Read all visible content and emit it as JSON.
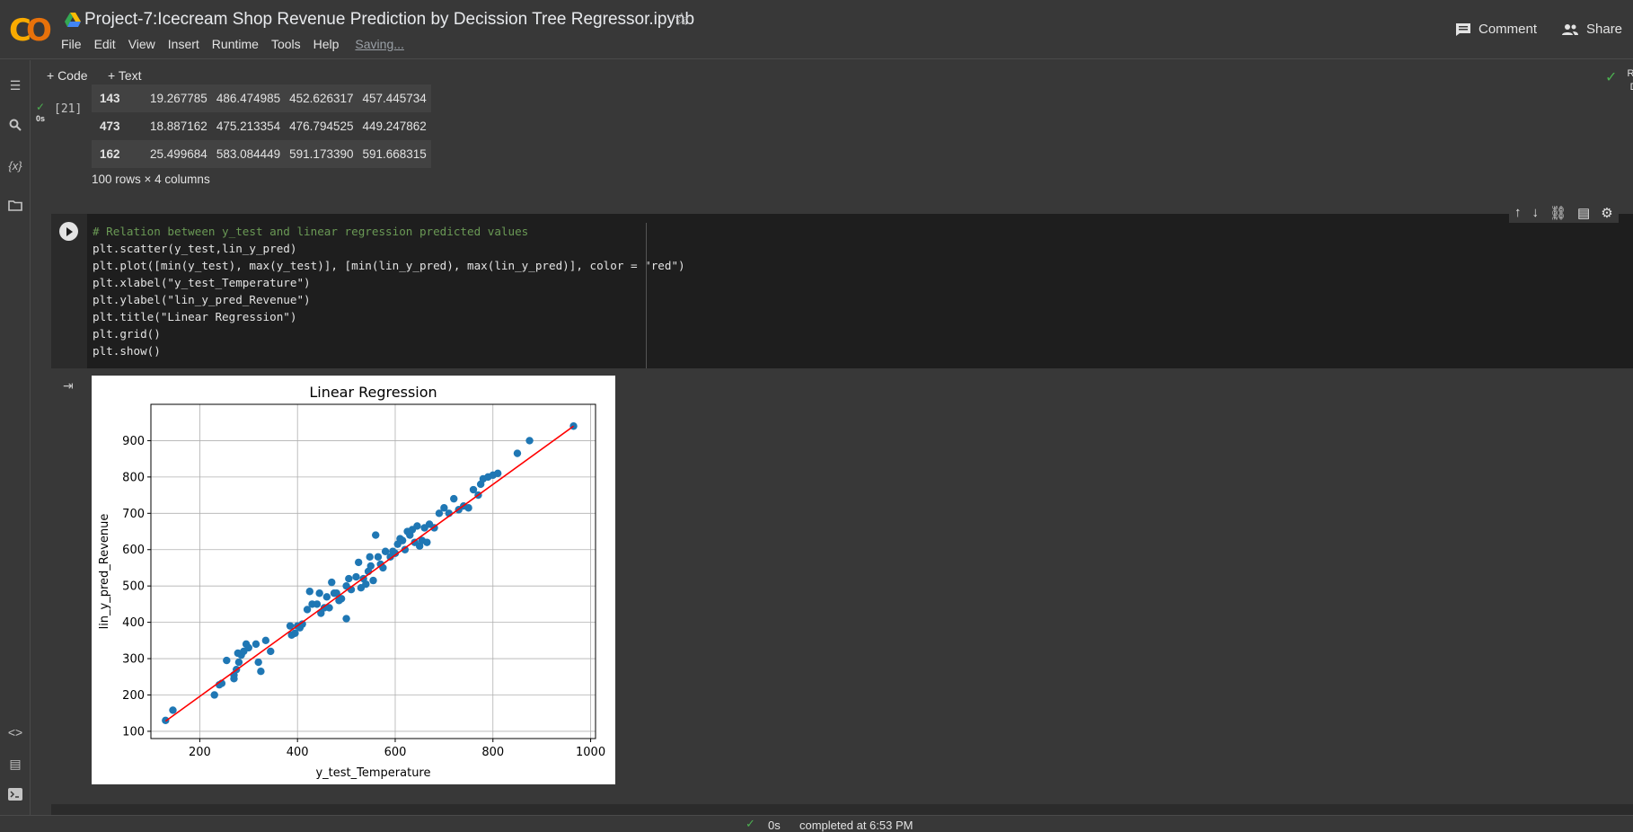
{
  "header": {
    "title": "Project-7:Icecream Shop Revenue Prediction by Decission Tree Regressor.ipynb",
    "menu": [
      "File",
      "Edit",
      "View",
      "Insert",
      "Runtime",
      "Tools",
      "Help"
    ],
    "saving": "Saving...",
    "comment_label": "Comment",
    "share_label": "Share"
  },
  "toolbar": {
    "code_label": "+ Code",
    "text_label": "+ Text",
    "ram_label": "RAM",
    "disk_label": "Disk"
  },
  "prev_cell": {
    "exec_count": "[21]",
    "exec_time": "0s",
    "rows": [
      {
        "idx": "143",
        "c1": "19.267785",
        "c2": "486.474985",
        "c3": "452.626317",
        "c4": "457.445734"
      },
      {
        "idx": "473",
        "c1": "18.887162",
        "c2": "475.213354",
        "c3": "476.794525",
        "c4": "449.247862"
      },
      {
        "idx": "162",
        "c1": "25.499684",
        "c2": "583.084449",
        "c3": "591.173390",
        "c4": "591.668315"
      }
    ],
    "shape_text": "100 rows × 4 columns"
  },
  "code_lines": [
    "# Relation between y_test and linear regression predicted values",
    "plt.scatter(y_test,lin_y_pred)",
    "plt.plot([min(y_test), max(y_test)], [min(lin_y_pred), max(lin_y_pred)], color = \"red\")",
    "plt.xlabel(\"y_test_Temperature\")",
    "plt.ylabel(\"lin_y_pred_Revenue\")",
    "plt.title(\"Linear Regression\")",
    "plt.grid()",
    "plt.show()"
  ],
  "chart_data": {
    "type": "scatter",
    "title": "Linear Regression",
    "xlabel": "y_test_Temperature",
    "ylabel": "lin_y_pred_Revenue",
    "xlim": [
      100,
      1010
    ],
    "ylim": [
      80,
      1000
    ],
    "xticks": [
      200,
      400,
      600,
      800,
      1000
    ],
    "yticks": [
      100,
      200,
      300,
      400,
      500,
      600,
      700,
      800,
      900
    ],
    "grid": true,
    "series": [
      {
        "points": [
          [
            130,
            130
          ],
          [
            145,
            158
          ],
          [
            230,
            200
          ],
          [
            240,
            228
          ],
          [
            245,
            232
          ],
          [
            255,
            295
          ],
          [
            270,
            255
          ],
          [
            270,
            245
          ],
          [
            275,
            270
          ],
          [
            278,
            315
          ],
          [
            280,
            290
          ],
          [
            285,
            310
          ],
          [
            290,
            320
          ],
          [
            295,
            340
          ],
          [
            300,
            330
          ],
          [
            315,
            340
          ],
          [
            320,
            290
          ],
          [
            325,
            265
          ],
          [
            335,
            350
          ],
          [
            345,
            320
          ],
          [
            385,
            390
          ],
          [
            388,
            365
          ],
          [
            395,
            370
          ],
          [
            400,
            390
          ],
          [
            405,
            385
          ],
          [
            410,
            395
          ],
          [
            420,
            435
          ],
          [
            425,
            485
          ],
          [
            430,
            450
          ],
          [
            440,
            450
          ],
          [
            445,
            480
          ],
          [
            448,
            425
          ],
          [
            455,
            440
          ],
          [
            460,
            470
          ],
          [
            465,
            440
          ],
          [
            470,
            510
          ],
          [
            475,
            480
          ],
          [
            480,
            480
          ],
          [
            485,
            460
          ],
          [
            490,
            465
          ],
          [
            500,
            410
          ],
          [
            500,
            500
          ],
          [
            505,
            520
          ],
          [
            510,
            490
          ],
          [
            520,
            525
          ],
          [
            525,
            565
          ],
          [
            530,
            495
          ],
          [
            535,
            520
          ],
          [
            540,
            505
          ],
          [
            545,
            540
          ],
          [
            548,
            580
          ],
          [
            550,
            555
          ],
          [
            555,
            515
          ],
          [
            560,
            640
          ],
          [
            565,
            580
          ],
          [
            570,
            560
          ],
          [
            575,
            550
          ],
          [
            580,
            595
          ],
          [
            590,
            580
          ],
          [
            595,
            595
          ],
          [
            600,
            590
          ],
          [
            605,
            615
          ],
          [
            610,
            630
          ],
          [
            615,
            625
          ],
          [
            620,
            600
          ],
          [
            625,
            650
          ],
          [
            630,
            640
          ],
          [
            635,
            655
          ],
          [
            640,
            620
          ],
          [
            645,
            665
          ],
          [
            650,
            610
          ],
          [
            655,
            625
          ],
          [
            660,
            660
          ],
          [
            665,
            620
          ],
          [
            670,
            670
          ],
          [
            680,
            660
          ],
          [
            690,
            700
          ],
          [
            700,
            715
          ],
          [
            710,
            700
          ],
          [
            720,
            740
          ],
          [
            730,
            710
          ],
          [
            740,
            720
          ],
          [
            750,
            715
          ],
          [
            760,
            765
          ],
          [
            770,
            750
          ],
          [
            775,
            780
          ],
          [
            780,
            795
          ],
          [
            790,
            800
          ],
          [
            800,
            805
          ],
          [
            810,
            810
          ],
          [
            850,
            865
          ],
          [
            875,
            900
          ],
          [
            965,
            940
          ]
        ]
      }
    ],
    "line": {
      "x": [
        130,
        965
      ],
      "y": [
        128,
        940
      ],
      "color": "#ff0000"
    },
    "point_color": "#1f77b4"
  },
  "status": {
    "time": "0s",
    "text": "completed at 6:53 PM"
  }
}
